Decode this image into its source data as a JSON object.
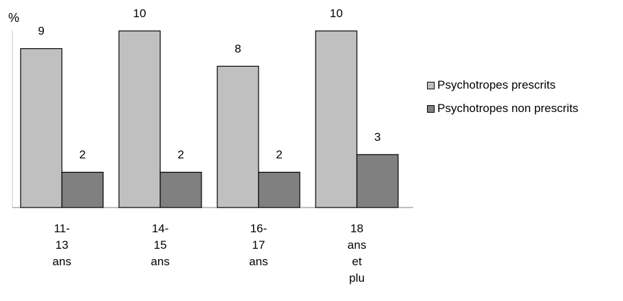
{
  "chart_data": {
    "type": "bar",
    "ylabel": "%",
    "ylim": [
      0,
      10
    ],
    "grid": false,
    "legend_position": "right",
    "categories": [
      [
        "11-",
        "13",
        "ans"
      ],
      [
        "14-",
        "15",
        "ans"
      ],
      [
        "16-",
        "17",
        "ans"
      ],
      [
        "18",
        "ans",
        "et",
        "plu"
      ]
    ],
    "series": [
      {
        "name": "Psychotropes prescrits",
        "values": [
          9,
          10,
          8,
          10
        ],
        "color": "#c0c0c0"
      },
      {
        "name": "Psychotropes non prescrits",
        "values": [
          2,
          2,
          2,
          3
        ],
        "color": "#808080"
      }
    ]
  }
}
